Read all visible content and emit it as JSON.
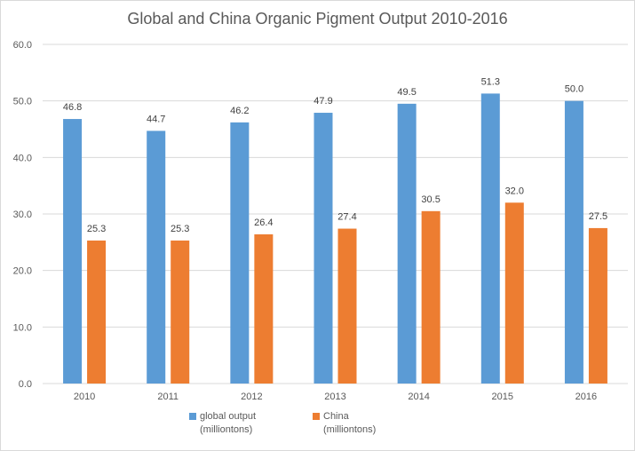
{
  "chart_data": {
    "type": "bar",
    "title": "Global and China Organic Pigment Output 2010-2016",
    "categories": [
      "2010",
      "2011",
      "2012",
      "2013",
      "2014",
      "2015",
      "2016"
    ],
    "series": [
      {
        "name": "global output (milliontons)",
        "legend_lines": [
          "global output",
          "(milliontons)"
        ],
        "color": "#5b9bd5",
        "values": [
          46.8,
          44.7,
          46.2,
          47.9,
          49.5,
          51.3,
          50.0
        ],
        "labels": [
          "46.8",
          "44.7",
          "46.2",
          "47.9",
          "49.5",
          "51.3",
          "50.0"
        ]
      },
      {
        "name": "China (milliontons)",
        "legend_lines": [
          "China",
          "(milliontons)"
        ],
        "color": "#ed7d31",
        "values": [
          25.3,
          25.3,
          26.4,
          27.4,
          30.5,
          32.0,
          27.5
        ],
        "labels": [
          "25.3",
          "25.3",
          "26.4",
          "27.4",
          "30.5",
          "32.0",
          "27.5"
        ]
      }
    ],
    "ylim": [
      0,
      60
    ],
    "yticks": [
      "0.0",
      "10.0",
      "20.0",
      "30.0",
      "40.0",
      "50.0",
      "60.0"
    ],
    "xlabel": "",
    "ylabel": "",
    "grid": true,
    "legend_position": "bottom",
    "gridline_color": "#d9d9d9"
  }
}
